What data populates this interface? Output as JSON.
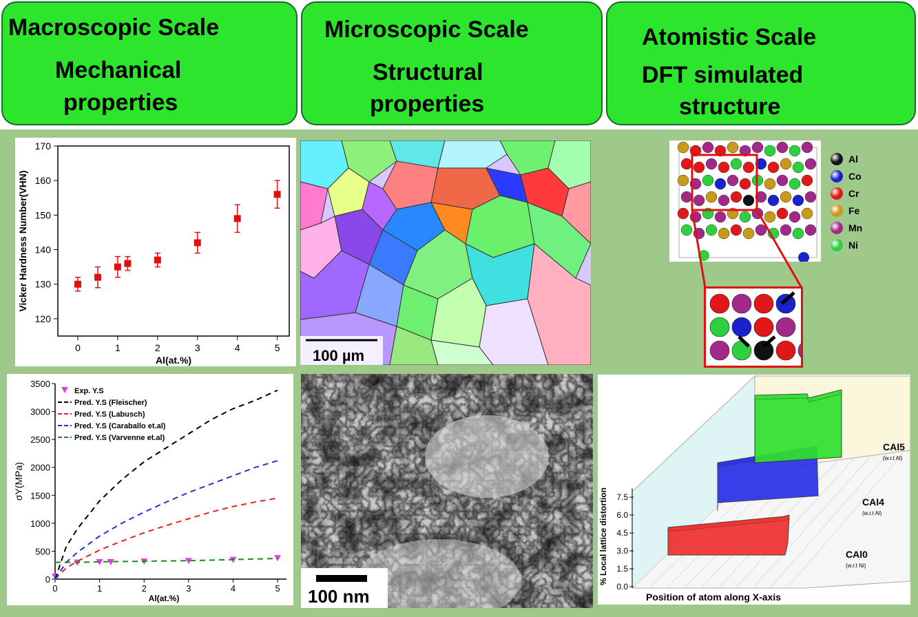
{
  "headers": [
    {
      "title": "Macroscopic Scale",
      "sub1": "Mechanical",
      "sub2": "properties"
    },
    {
      "title": "Microscopic Scale",
      "sub1": "Structural",
      "sub2": "properties"
    },
    {
      "title": "Atomistic Scale",
      "sub1": "DFT  simulated",
      "sub2": "structure"
    }
  ],
  "micro_top": {
    "scalebar": "100 µm"
  },
  "micro_bottom": {
    "scalebar": "100 nm"
  },
  "atom_legend": [
    {
      "label": "Al",
      "color": "#111111"
    },
    {
      "label": "Co",
      "color": "#1a22cc"
    },
    {
      "label": "Cr",
      "color": "#e01818"
    },
    {
      "label": "Fe",
      "color": "#c99a1a"
    },
    {
      "label": "Mn",
      "color": "#a2288a"
    },
    {
      "label": "Ni",
      "color": "#2ed040"
    }
  ],
  "chart_data": [
    {
      "type": "scatter",
      "xlabel": "Al(at.%)",
      "ylabel": "Vicker Hardness Number(VHN)",
      "xlim": [
        -0.5,
        5.3
      ],
      "ylim": [
        115,
        170
      ],
      "xticks": [
        "0",
        "1",
        "2",
        "3",
        "4",
        "5"
      ],
      "yticks": [
        "120",
        "130",
        "140",
        "150",
        "160",
        "170"
      ],
      "x": [
        0,
        0.5,
        1,
        1.25,
        2,
        3,
        4,
        5
      ],
      "y": [
        130,
        132,
        135,
        136,
        137,
        142,
        149,
        156
      ],
      "err": [
        2,
        3,
        3,
        2,
        2,
        3,
        4,
        4
      ]
    },
    {
      "type": "line",
      "xlabel": "Al(at.%)",
      "ylabel": "σY(MPa)",
      "xlim": [
        0,
        5.2
      ],
      "ylim": [
        0,
        3500
      ],
      "xticks": [
        "0",
        "1",
        "2",
        "3",
        "4",
        "5"
      ],
      "yticks": [
        "0",
        "500",
        "1000",
        "1500",
        "2000",
        "2500",
        "3000",
        "3500"
      ],
      "series": [
        {
          "name": "Exp. Y.S",
          "kind": "points",
          "color": "#e040e0",
          "x": [
            0,
            0.5,
            1,
            1.25,
            2,
            3,
            4,
            5
          ],
          "y": [
            50,
            300,
            310,
            310,
            320,
            330,
            350,
            380
          ]
        },
        {
          "name": "Pred. Y.S (Fleischer)",
          "kind": "line",
          "color": "#000000",
          "x": [
            0,
            0.25,
            0.5,
            1,
            1.5,
            2,
            2.5,
            3,
            3.5,
            4,
            4.5,
            5
          ],
          "y": [
            0,
            580,
            900,
            1400,
            1780,
            2100,
            2350,
            2600,
            2850,
            3050,
            3200,
            3380
          ]
        },
        {
          "name": "Pred. Y.S (Labusch)",
          "kind": "line",
          "color": "#e82020",
          "x": [
            0,
            0.25,
            0.5,
            1,
            1.5,
            2,
            2.5,
            3,
            3.5,
            4,
            4.5,
            5
          ],
          "y": [
            0,
            200,
            320,
            520,
            680,
            830,
            960,
            1080,
            1200,
            1300,
            1380,
            1450
          ]
        },
        {
          "name": "Pred. Y.S (Caraballo et.al)",
          "kind": "line",
          "color": "#2030e0",
          "x": [
            0,
            0.25,
            0.5,
            1,
            1.5,
            2,
            2.5,
            3,
            3.5,
            4,
            4.5,
            5
          ],
          "y": [
            0,
            300,
            480,
            770,
            1000,
            1200,
            1380,
            1550,
            1700,
            1850,
            2000,
            2120
          ]
        },
        {
          "name": "Pred. Y.S (Varvenne et.al)",
          "kind": "line",
          "color": "#1a8a1a",
          "x": [
            0,
            0.5,
            1,
            1.5,
            2,
            3,
            4,
            5
          ],
          "y": [
            300,
            300,
            310,
            315,
            320,
            330,
            350,
            370
          ]
        }
      ]
    },
    {
      "type": "area",
      "xlabel": "Position of atom along X-axis",
      "ylabel": "% Local lattice distortion",
      "yticks": [
        "0.0",
        "1.5",
        "3.0",
        "4.5",
        "6.0",
        "7.5"
      ],
      "series": [
        {
          "name": "CAl0",
          "sublabel": "(w.r.t Ni)",
          "color": "#f03030"
        },
        {
          "name": "CAl4",
          "sublabel": "(w.r.t Al)",
          "color": "#2a30e8"
        },
        {
          "name": "CAl5",
          "sublabel": "(w.r.t Al)",
          "color": "#30e030"
        }
      ]
    }
  ]
}
